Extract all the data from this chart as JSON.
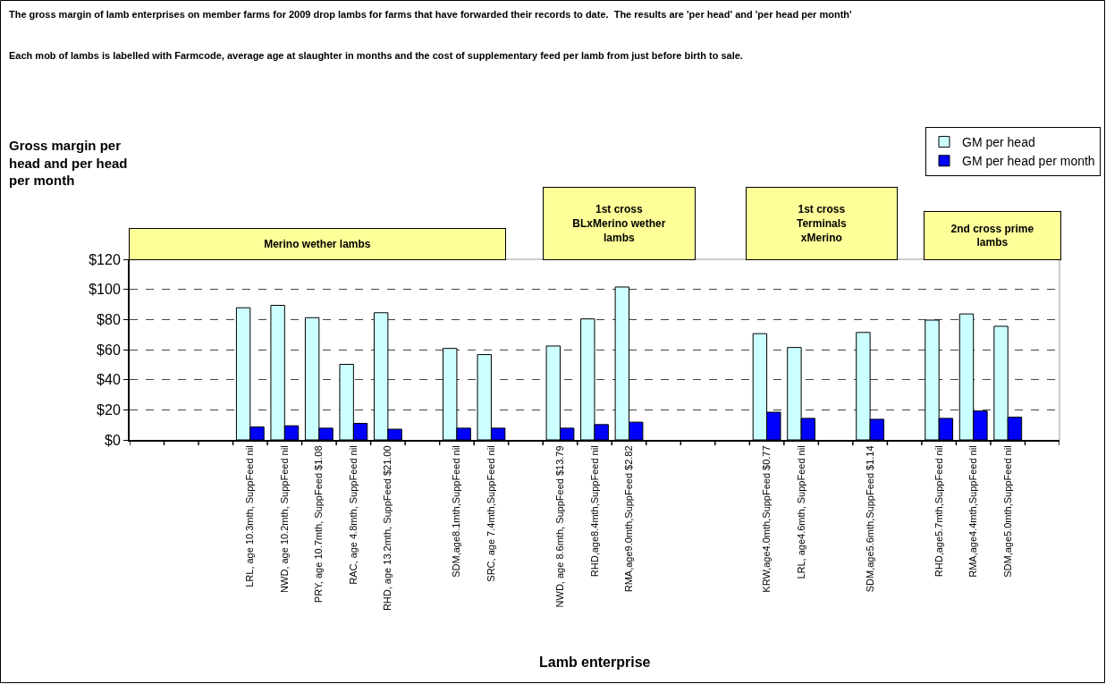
{
  "chart_data": {
    "type": "bar",
    "title": "The gross margin of lamb enterprises on member farms for 2009 drop lambs for farms that have forwarded their records to date.  The results are 'per head' and 'per head per month'",
    "subtitle": "Each mob of lambs is labelled with Farmcode, average age at slaughter in months and the cost of supplementary feed per lamb from just before birth to sale.",
    "ylabel": "Gross margin per head and per head per month",
    "xlabel": "Lamb enterprise",
    "categories": [
      null,
      null,
      null,
      "LRL, age 10.3mth, SuppFeed nil",
      "NWD, age 10.2mth, SuppFeed nil",
      "PRY, age 10.7mth, SuppFeed $1.08",
      "RAC, age 4.8mth, SuppFeed nil",
      "RHD, age 13.2mth, SuppFeed $21.00",
      null,
      "SDM,age8.1mth,SuppFeed nil",
      "SRC, age 7.4mth,SuppFeed nil",
      null,
      "NWD, age 8.6mth, SuppFeed $13.79",
      "RHD,age8.4mth,SuppFeed nil",
      "RMA,age9.0mth,SuppFeed $2.82",
      null,
      null,
      null,
      "KRW,age4.0mth,SuppFeed $0.77",
      "LRL, age4.6mth, SuppFeed nil",
      null,
      "SDM,age5.6mth,SuppFeed $1.14",
      null,
      "RHD,age5.7mth,SuppFeed nil",
      "RMA,age4.4mth,SuppFeed nil",
      "SDM,age5.0mth,SuppFeed nil",
      null
    ],
    "series": [
      {
        "name": "GM per head",
        "color": "#ccffff",
        "values": [
          null,
          null,
          null,
          87.8,
          89.4,
          81.2,
          50.2,
          84.5,
          null,
          60.8,
          56.7,
          null,
          62.4,
          80.4,
          101.6,
          null,
          null,
          null,
          70.6,
          61.4,
          null,
          71.4,
          null,
          79.6,
          83.7,
          75.5,
          null
        ]
      },
      {
        "name": "GM per head per month",
        "color": "#0000ff",
        "values": [
          null,
          null,
          null,
          8.6,
          9.4,
          7.8,
          11.0,
          7.1,
          null,
          7.8,
          7.8,
          null,
          7.8,
          10.2,
          11.8,
          null,
          null,
          null,
          18.4,
          14.3,
          null,
          13.7,
          null,
          14.3,
          19.2,
          15.1,
          null
        ]
      }
    ],
    "ylim": [
      0,
      120
    ],
    "yticks": [
      {
        "value": 0,
        "label": "$0"
      },
      {
        "value": 20,
        "label": "$20"
      },
      {
        "value": 40,
        "label": "$40"
      },
      {
        "value": 60,
        "label": "$60"
      },
      {
        "value": 80,
        "label": "$80"
      },
      {
        "value": 100,
        "label": "$100"
      },
      {
        "value": 120,
        "label": "$120"
      }
    ],
    "grid": "y",
    "legend": "top right",
    "annotations": [
      "Merino wether lambs",
      "1st cross BLxMerino wether lambs",
      "1st cross Terminals xMerino",
      "2nd cross prime lambs"
    ]
  }
}
